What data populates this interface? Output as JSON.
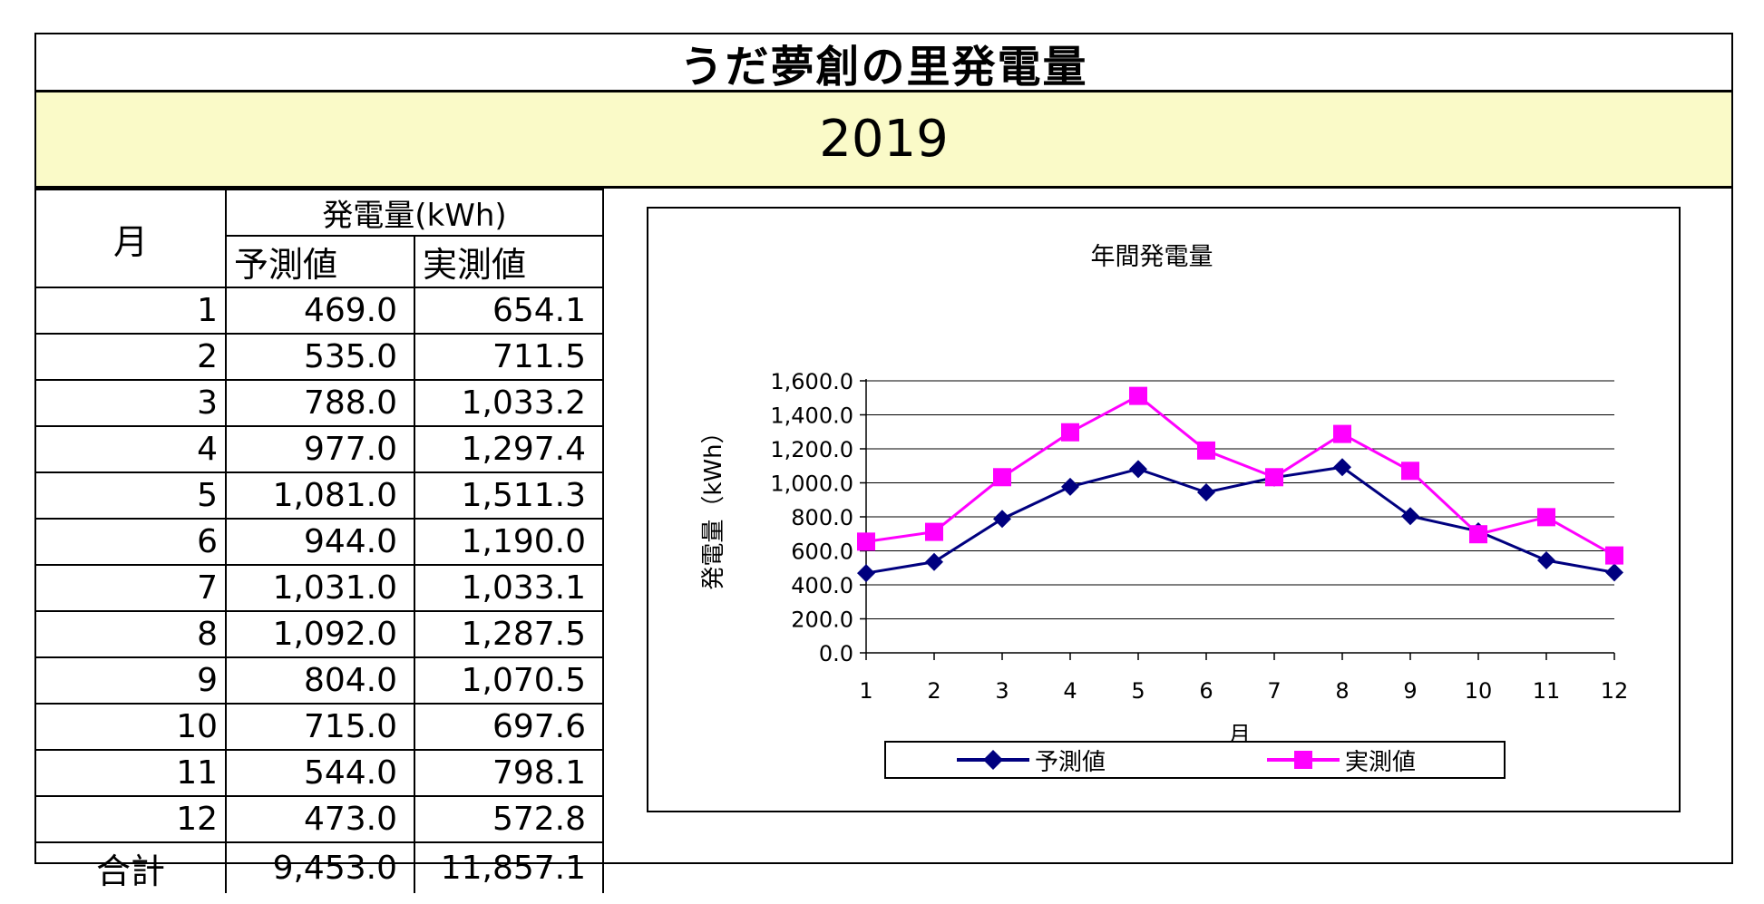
{
  "title": "うだ夢創の里発電量",
  "year": "2019",
  "table": {
    "month_header": "月",
    "power_header": "発電量(kWh)",
    "col_predicted": "予測値",
    "col_actual": "実測値",
    "rows": [
      {
        "month": "1",
        "predicted": "469.0",
        "actual": "654.1"
      },
      {
        "month": "2",
        "predicted": "535.0",
        "actual": "711.5"
      },
      {
        "month": "3",
        "predicted": "788.0",
        "actual": "1,033.2"
      },
      {
        "month": "4",
        "predicted": "977.0",
        "actual": "1,297.4"
      },
      {
        "month": "5",
        "predicted": "1,081.0",
        "actual": "1,511.3"
      },
      {
        "month": "6",
        "predicted": "944.0",
        "actual": "1,190.0"
      },
      {
        "month": "7",
        "predicted": "1,031.0",
        "actual": "1,033.1"
      },
      {
        "month": "8",
        "predicted": "1,092.0",
        "actual": "1,287.5"
      },
      {
        "month": "9",
        "predicted": "804.0",
        "actual": "1,070.5"
      },
      {
        "month": "10",
        "predicted": "715.0",
        "actual": "697.6"
      },
      {
        "month": "11",
        "predicted": "544.0",
        "actual": "798.1"
      },
      {
        "month": "12",
        "predicted": "473.0",
        "actual": "572.8"
      }
    ],
    "total_label": "合計",
    "total_predicted": "9,453.0",
    "total_actual": "11,857.1"
  },
  "chart_data": {
    "type": "line",
    "title": "年間発電量",
    "xlabel": "月",
    "ylabel": "発電量（kWh）",
    "categories": [
      "1",
      "2",
      "3",
      "4",
      "5",
      "6",
      "7",
      "8",
      "9",
      "10",
      "11",
      "12"
    ],
    "ylim": [
      0,
      1600
    ],
    "yticks": [
      "0.0",
      "200.0",
      "400.0",
      "600.0",
      "800.0",
      "1,000.0",
      "1,200.0",
      "1,400.0",
      "1,600.0"
    ],
    "grid": true,
    "legend_position": "bottom",
    "series": [
      {
        "name": "予測値",
        "color": "#00007f",
        "marker": "diamond",
        "values": [
          469.0,
          535.0,
          788.0,
          977.0,
          1081.0,
          944.0,
          1031.0,
          1092.0,
          804.0,
          715.0,
          544.0,
          473.0
        ]
      },
      {
        "name": "実測値",
        "color": "#ff00ff",
        "marker": "square",
        "values": [
          654.1,
          711.5,
          1033.2,
          1297.4,
          1511.3,
          1190.0,
          1033.1,
          1287.5,
          1070.5,
          697.6,
          798.1,
          572.8
        ]
      }
    ]
  }
}
